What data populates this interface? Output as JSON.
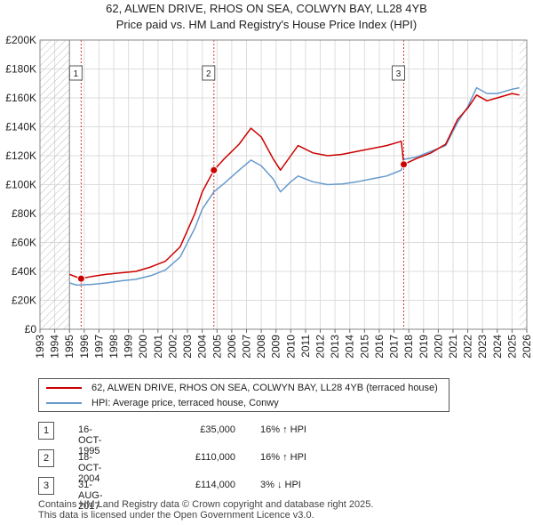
{
  "title_line1": "62, ALWEN DRIVE, RHOS ON SEA, COLWYN BAY, LL28 4YB",
  "title_line2": "Price paid vs. HM Land Registry's House Price Index (HPI)",
  "colors": {
    "property": "#cc0000",
    "hpi": "#6699cc",
    "marker": "#cc0000",
    "hatch": "#bbbbbb",
    "grid": "#dddddd"
  },
  "legend": {
    "property_label": "62, ALWEN DRIVE, RHOS ON SEA, COLWYN BAY, LL28 4YB (terraced house)",
    "hpi_label": "HPI: Average price, terraced house, Conwy"
  },
  "transactions": [
    {
      "num": "1",
      "date": "16-OCT-1995",
      "price": "£35,000",
      "hpi": "16% ↑ HPI"
    },
    {
      "num": "2",
      "date": "18-OCT-2004",
      "price": "£110,000",
      "hpi": "16% ↑ HPI"
    },
    {
      "num": "3",
      "date": "31-AUG-2017",
      "price": "£114,000",
      "hpi": "3% ↓ HPI"
    }
  ],
  "footer_line1": "Contains HM Land Registry data © Crown copyright and database right 2025.",
  "footer_line2": "This data is licensed under the Open Government Licence v3.0.",
  "chart_data": {
    "type": "line",
    "xlim": [
      1993,
      2026
    ],
    "ylim": [
      0,
      200000
    ],
    "x_ticks": [
      1993,
      1994,
      1995,
      1996,
      1997,
      1998,
      1999,
      2000,
      2001,
      2002,
      2003,
      2004,
      2005,
      2006,
      2007,
      2008,
      2009,
      2010,
      2011,
      2012,
      2013,
      2014,
      2015,
      2016,
      2017,
      2018,
      2019,
      2020,
      2021,
      2022,
      2023,
      2024,
      2025,
      2026
    ],
    "y_ticks": [
      0,
      20000,
      40000,
      60000,
      80000,
      100000,
      120000,
      140000,
      160000,
      180000,
      200000
    ],
    "y_tick_labels": [
      "£0",
      "£20K",
      "£40K",
      "£60K",
      "£80K",
      "£100K",
      "£120K",
      "£140K",
      "£160K",
      "£180K",
      "£200K"
    ],
    "data_start": 1995.0,
    "data_end": 2025.5,
    "series": [
      {
        "name": "62, ALWEN DRIVE, RHOS ON SEA, COLWYN BAY, LL28 4YB (terraced house)",
        "points": [
          [
            1995.0,
            38000
          ],
          [
            1995.5,
            36000
          ],
          [
            1995.79,
            35000
          ],
          [
            1996.5,
            36500
          ],
          [
            1997.5,
            38000
          ],
          [
            1998.5,
            39000
          ],
          [
            1999.5,
            40000
          ],
          [
            2000.5,
            43000
          ],
          [
            2001.5,
            47000
          ],
          [
            2002.5,
            57000
          ],
          [
            2003.5,
            80000
          ],
          [
            2004.0,
            95000
          ],
          [
            2004.79,
            110000
          ],
          [
            2005.5,
            118000
          ],
          [
            2006.5,
            128000
          ],
          [
            2007.3,
            139000
          ],
          [
            2008.0,
            133000
          ],
          [
            2008.8,
            118000
          ],
          [
            2009.3,
            110000
          ],
          [
            2010.0,
            120000
          ],
          [
            2010.5,
            127000
          ],
          [
            2011.5,
            122000
          ],
          [
            2012.5,
            120000
          ],
          [
            2013.5,
            121000
          ],
          [
            2014.5,
            123000
          ],
          [
            2015.5,
            125000
          ],
          [
            2016.5,
            127000
          ],
          [
            2017.5,
            130000
          ],
          [
            2017.66,
            114000
          ],
          [
            2018.5,
            118000
          ],
          [
            2019.5,
            122000
          ],
          [
            2020.5,
            128000
          ],
          [
            2021.3,
            145000
          ],
          [
            2022.0,
            153000
          ],
          [
            2022.6,
            162000
          ],
          [
            2023.3,
            158000
          ],
          [
            2024.0,
            160000
          ],
          [
            2025.0,
            163000
          ],
          [
            2025.5,
            162000
          ]
        ]
      },
      {
        "name": "HPI: Average price, terraced house, Conwy",
        "points": [
          [
            1995.0,
            32000
          ],
          [
            1995.5,
            30500
          ],
          [
            1996.5,
            31000
          ],
          [
            1997.5,
            32000
          ],
          [
            1998.5,
            33500
          ],
          [
            1999.5,
            34500
          ],
          [
            2000.5,
            37000
          ],
          [
            2001.5,
            41000
          ],
          [
            2002.5,
            50000
          ],
          [
            2003.5,
            70000
          ],
          [
            2004.0,
            83000
          ],
          [
            2004.79,
            95000
          ],
          [
            2005.5,
            101000
          ],
          [
            2006.5,
            110000
          ],
          [
            2007.3,
            117000
          ],
          [
            2008.0,
            113000
          ],
          [
            2008.8,
            104000
          ],
          [
            2009.3,
            95000
          ],
          [
            2010.0,
            102000
          ],
          [
            2010.5,
            106000
          ],
          [
            2011.5,
            102000
          ],
          [
            2012.5,
            100000
          ],
          [
            2013.5,
            100500
          ],
          [
            2014.5,
            102000
          ],
          [
            2015.5,
            104000
          ],
          [
            2016.5,
            106000
          ],
          [
            2017.5,
            110000
          ],
          [
            2017.66,
            117500
          ],
          [
            2018.5,
            119000
          ],
          [
            2019.5,
            123000
          ],
          [
            2020.5,
            127000
          ],
          [
            2021.3,
            143000
          ],
          [
            2022.0,
            154000
          ],
          [
            2022.6,
            167000
          ],
          [
            2023.3,
            163000
          ],
          [
            2024.0,
            163000
          ],
          [
            2025.0,
            166000
          ],
          [
            2025.5,
            167000
          ]
        ]
      }
    ],
    "sales": [
      {
        "num": "1",
        "x": 1995.79,
        "y": 35000
      },
      {
        "num": "2",
        "x": 2004.79,
        "y": 110000
      },
      {
        "num": "3",
        "x": 2017.66,
        "y": 114000
      }
    ]
  }
}
